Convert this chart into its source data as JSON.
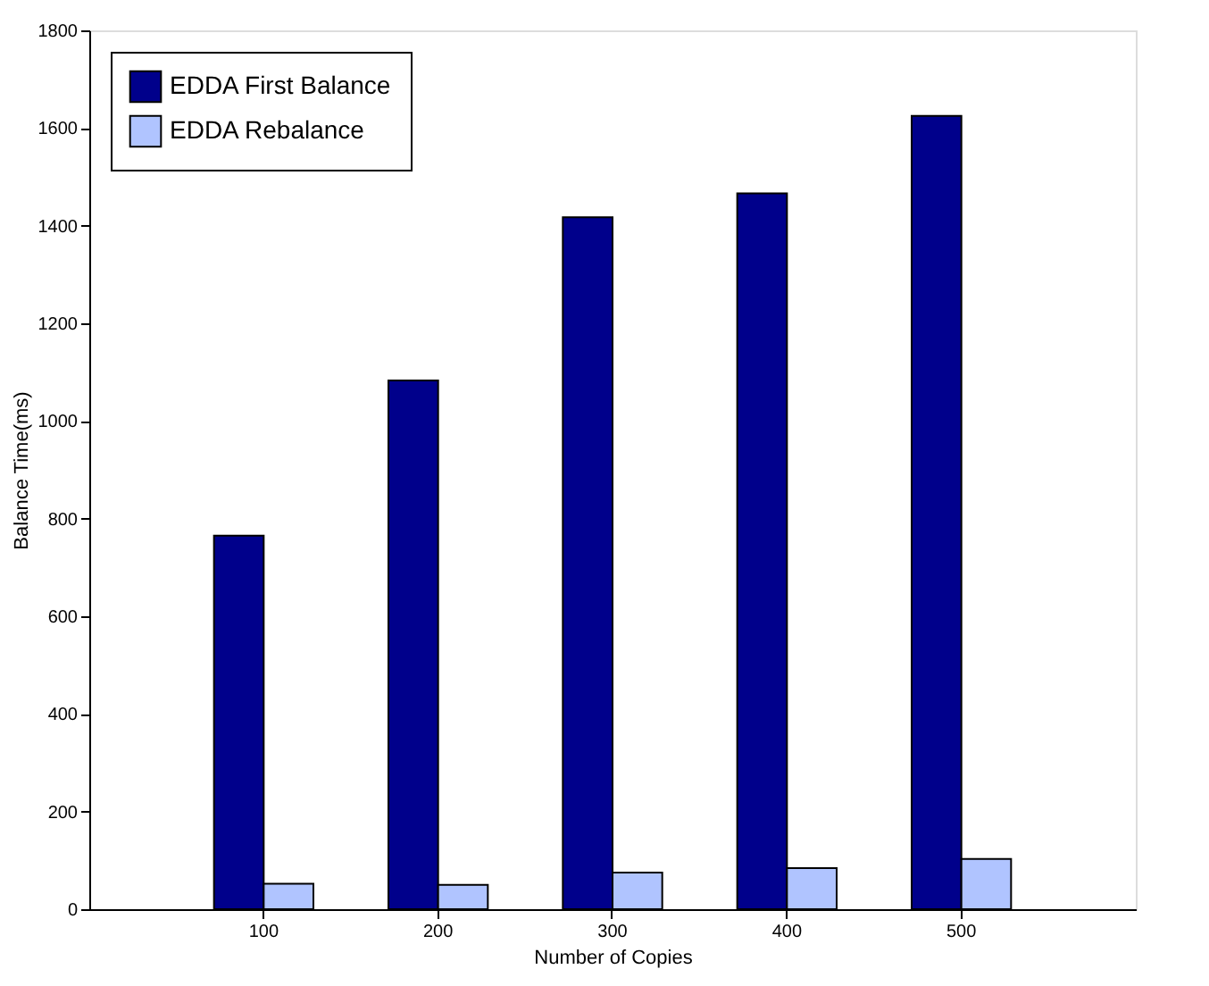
{
  "chart_data": {
    "type": "bar",
    "xlabel": "Number of Copies",
    "ylabel": "Balance Time(ms)",
    "categories": [
      "100",
      "200",
      "300",
      "400",
      "500"
    ],
    "series": [
      {
        "name": "EDDA First Balance",
        "color": "#00008b",
        "values": [
          765,
          1083,
          1417,
          1466,
          1625
        ]
      },
      {
        "name": "EDDA Rebalance",
        "color": "#b0c4ff",
        "values": [
          52,
          50,
          75,
          84,
          103
        ]
      }
    ],
    "ylim": [
      0,
      1800
    ],
    "yticks": [
      0,
      200,
      400,
      600,
      800,
      1000,
      1200,
      1400,
      1600,
      1800
    ],
    "grid": false,
    "legend": "top left"
  }
}
